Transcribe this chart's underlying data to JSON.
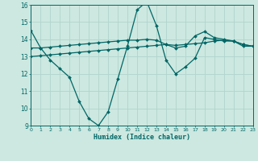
{
  "title": "",
  "xlabel": "Humidex (Indice chaleur)",
  "ylabel": "",
  "x_min": 0,
  "x_max": 23,
  "y_min": 9,
  "y_max": 16,
  "background_color": "#cce8e0",
  "grid_color": "#b0d4cc",
  "line_color": "#006666",
  "line1": {
    "x": [
      0,
      1,
      2,
      3,
      4,
      5,
      6,
      7,
      8,
      9,
      10,
      11,
      12,
      13,
      14,
      15,
      16,
      17,
      18,
      19,
      20,
      21,
      22,
      23
    ],
    "y": [
      14.5,
      13.5,
      12.8,
      12.3,
      11.8,
      10.4,
      9.4,
      9.0,
      9.8,
      11.7,
      13.6,
      15.7,
      16.2,
      14.8,
      12.8,
      12.0,
      12.4,
      12.9,
      14.1,
      14.0,
      13.9,
      13.9,
      13.6,
      13.6
    ]
  },
  "line2": {
    "x": [
      0,
      1,
      2,
      3,
      4,
      5,
      6,
      7,
      8,
      9,
      10,
      11,
      12,
      13,
      14,
      15,
      16,
      17,
      18,
      19,
      20,
      21,
      22,
      23
    ],
    "y": [
      13.5,
      13.5,
      13.55,
      13.6,
      13.65,
      13.7,
      13.75,
      13.8,
      13.85,
      13.9,
      13.95,
      13.95,
      14.0,
      13.95,
      13.7,
      13.5,
      13.6,
      14.2,
      14.45,
      14.1,
      14.0,
      13.9,
      13.7,
      13.6
    ]
  },
  "line3": {
    "x": [
      0,
      1,
      2,
      3,
      4,
      5,
      6,
      7,
      8,
      9,
      10,
      11,
      12,
      13,
      14,
      15,
      16,
      17,
      18,
      19,
      20,
      21,
      22,
      23
    ],
    "y": [
      13.0,
      13.05,
      13.1,
      13.15,
      13.2,
      13.25,
      13.3,
      13.35,
      13.4,
      13.45,
      13.5,
      13.55,
      13.6,
      13.65,
      13.7,
      13.65,
      13.7,
      13.75,
      13.8,
      13.9,
      13.95,
      13.9,
      13.7,
      13.6
    ]
  }
}
